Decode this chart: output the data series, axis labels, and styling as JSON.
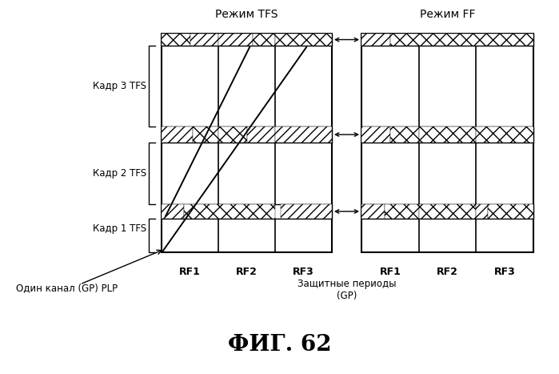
{
  "title": "ФИГ. 62",
  "title_fontsize": 20,
  "title_fontweight": "bold",
  "label_tfs_mode": "Режим TFS",
  "label_ff_mode": "Режим FF",
  "label_frame3": "Кадр 3 TFS",
  "label_frame2": "Кадр 2 TFS",
  "label_frame1": "Кадр 1 TFS",
  "label_channel": "Один канал (GP) PLP",
  "label_gp": "Защитные периоды\n(GP)",
  "rf_labels": [
    "RF1",
    "RF2",
    "RF3"
  ],
  "bg_color": "#ffffff",
  "line_color": "#000000"
}
